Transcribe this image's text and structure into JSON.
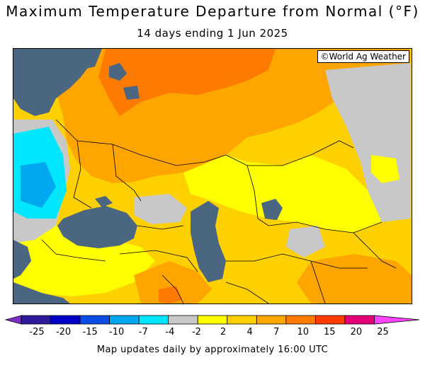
{
  "header": {
    "title": "Maximum Temperature Departure from Normal (°F)",
    "subtitle": "14 days ending 1 Jun 2025"
  },
  "map": {
    "credit": "©World Ag Weather",
    "colors": {
      "water": "#4a6680",
      "land_default": "#ffa500",
      "border": "#000000"
    }
  },
  "legend": {
    "ticks": [
      "-25",
      "-20",
      "-15",
      "-10",
      "-7",
      "-4",
      "-2",
      "2",
      "4",
      "7",
      "10",
      "15",
      "20",
      "25"
    ],
    "colors": [
      "#7a2fc8",
      "#2d1a9a",
      "#0000c8",
      "#0a4ee6",
      "#00a8f0",
      "#00e6ff",
      "#c8c8c8",
      "#ffff00",
      "#ffd000",
      "#ffa500",
      "#ff7a00",
      "#ff3c00",
      "#e6007a",
      "#ff44ff"
    ]
  },
  "footer": {
    "text": "Map updates daily by approximately 16:00 UTC"
  }
}
